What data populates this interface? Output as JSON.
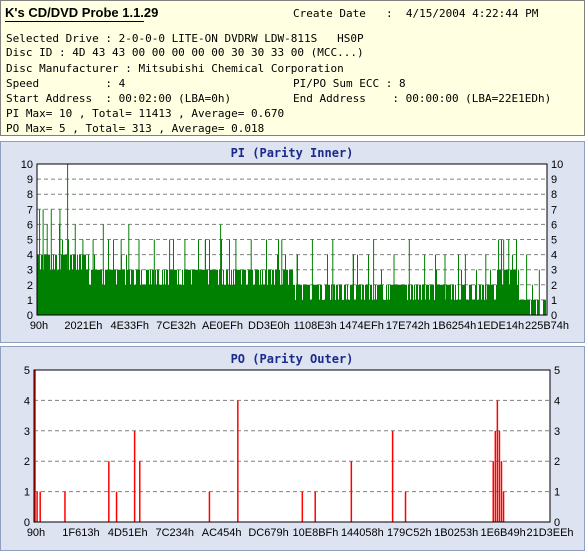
{
  "window": {
    "title": "K's CD/DVD Probe 1.1.29"
  },
  "info": {
    "create_date_label": "Create Date",
    "create_date_value": ":  4/15/2004 4:22:44 PM",
    "selected_drive": "Selected Drive : 2-0-0-0 LITE-ON DVDRW LDW-811S   HS0P",
    "disc_id": "Disc ID : 4D 43 43 00 00 00 00 00 30 30 33 00 (MCC...)",
    "disc_manufacturer": "Disc Manufacturer : Mitsubishi Chemical Corporation",
    "speed": "Speed          : 4",
    "pipo_sum_ecc": "PI/PO Sum ECC : 8",
    "start_address": "Start Address  : 00:02:00 (LBA=0h)",
    "end_address": "End Address    : 00:00:00 (LBA=22E1EDh)",
    "pi_stats": "PI Max= 10 , Total= 11413 , Average= 0.670",
    "po_stats": "PO Max= 5 , Total= 313 , Average= 0.018"
  },
  "chart_data": [
    {
      "type": "bar",
      "title": "PI (Parity Inner)",
      "color": "#008000",
      "ylim": [
        0,
        10
      ],
      "yticks": [
        0,
        1,
        2,
        3,
        4,
        5,
        6,
        7,
        8,
        9,
        10
      ],
      "xlim": [
        0,
        2286061
      ],
      "xtick_labels": [
        "90h",
        "2021Eh",
        "4E33Fh",
        "7CE32h",
        "AE0EFh",
        "DD3E0h",
        "1108E3h",
        "1474EFh",
        "17E742h",
        "1B6254h",
        "1EDE14h",
        "225B74h"
      ],
      "grid": "dashed-horizontal",
      "baseline": [
        {
          "x": 0,
          "y": 4
        },
        {
          "x": 0.1,
          "y": 3
        },
        {
          "x": 0.22,
          "y": 3
        },
        {
          "x": 0.32,
          "y": 3
        },
        {
          "x": 0.4,
          "y": 3
        },
        {
          "x": 0.5,
          "y": 2
        },
        {
          "x": 0.6,
          "y": 2
        },
        {
          "x": 0.7,
          "y": 2
        },
        {
          "x": 0.8,
          "y": 2
        },
        {
          "x": 0.87,
          "y": 2
        },
        {
          "x": 0.9,
          "y": 3
        },
        {
          "x": 0.935,
          "y": 3
        },
        {
          "x": 0.945,
          "y": 1
        },
        {
          "x": 1.0,
          "y": 1
        }
      ],
      "peaks": [
        {
          "x": 0.005,
          "y": 7
        },
        {
          "x": 0.012,
          "y": 7
        },
        {
          "x": 0.02,
          "y": 6
        },
        {
          "x": 0.028,
          "y": 7
        },
        {
          "x": 0.045,
          "y": 7
        },
        {
          "x": 0.06,
          "y": 10
        },
        {
          "x": 0.075,
          "y": 6
        },
        {
          "x": 0.09,
          "y": 5
        },
        {
          "x": 0.11,
          "y": 5
        },
        {
          "x": 0.13,
          "y": 6
        },
        {
          "x": 0.15,
          "y": 5
        },
        {
          "x": 0.165,
          "y": 5
        },
        {
          "x": 0.18,
          "y": 6
        },
        {
          "x": 0.2,
          "y": 5
        },
        {
          "x": 0.23,
          "y": 5
        },
        {
          "x": 0.26,
          "y": 5
        },
        {
          "x": 0.29,
          "y": 5
        },
        {
          "x": 0.33,
          "y": 5
        },
        {
          "x": 0.36,
          "y": 6
        },
        {
          "x": 0.39,
          "y": 5
        },
        {
          "x": 0.42,
          "y": 5
        },
        {
          "x": 0.45,
          "y": 5
        },
        {
          "x": 0.48,
          "y": 5
        },
        {
          "x": 0.51,
          "y": 4
        },
        {
          "x": 0.54,
          "y": 5
        },
        {
          "x": 0.58,
          "y": 5
        },
        {
          "x": 0.62,
          "y": 4
        },
        {
          "x": 0.66,
          "y": 5
        },
        {
          "x": 0.7,
          "y": 4
        },
        {
          "x": 0.73,
          "y": 5
        },
        {
          "x": 0.76,
          "y": 4
        },
        {
          "x": 0.8,
          "y": 4
        },
        {
          "x": 0.84,
          "y": 4
        },
        {
          "x": 0.88,
          "y": 4
        },
        {
          "x": 0.905,
          "y": 5
        },
        {
          "x": 0.915,
          "y": 5
        },
        {
          "x": 0.925,
          "y": 5
        },
        {
          "x": 0.96,
          "y": 4
        },
        {
          "x": 0.985,
          "y": 3
        }
      ]
    },
    {
      "type": "bar",
      "title": "PO (Parity Outer)",
      "color": "#ff0000",
      "ylim": [
        0,
        5
      ],
      "yticks": [
        0,
        1,
        2,
        3,
        4,
        5
      ],
      "xlim": [
        0,
        2286061
      ],
      "xtick_labels": [
        "90h",
        "1F613h",
        "4D51Eh",
        "7C234h",
        "AC454h",
        "DC679h",
        "10E8BFh",
        "144058h",
        "179C52h",
        "1B0253h",
        "1E6B49h",
        "21D3EEh"
      ],
      "grid": "dashed-horizontal",
      "bars": [
        {
          "x": 0.002,
          "y": 5
        },
        {
          "x": 0.006,
          "y": 1
        },
        {
          "x": 0.012,
          "y": 1
        },
        {
          "x": 0.06,
          "y": 1
        },
        {
          "x": 0.145,
          "y": 2
        },
        {
          "x": 0.16,
          "y": 1
        },
        {
          "x": 0.195,
          "y": 3
        },
        {
          "x": 0.205,
          "y": 2
        },
        {
          "x": 0.34,
          "y": 1
        },
        {
          "x": 0.395,
          "y": 4
        },
        {
          "x": 0.52,
          "y": 1
        },
        {
          "x": 0.545,
          "y": 1
        },
        {
          "x": 0.615,
          "y": 2
        },
        {
          "x": 0.695,
          "y": 3
        },
        {
          "x": 0.72,
          "y": 1
        },
        {
          "x": 0.89,
          "y": 2
        },
        {
          "x": 0.894,
          "y": 3
        },
        {
          "x": 0.898,
          "y": 4
        },
        {
          "x": 0.902,
          "y": 3
        },
        {
          "x": 0.906,
          "y": 2
        },
        {
          "x": 0.91,
          "y": 1
        }
      ]
    }
  ]
}
